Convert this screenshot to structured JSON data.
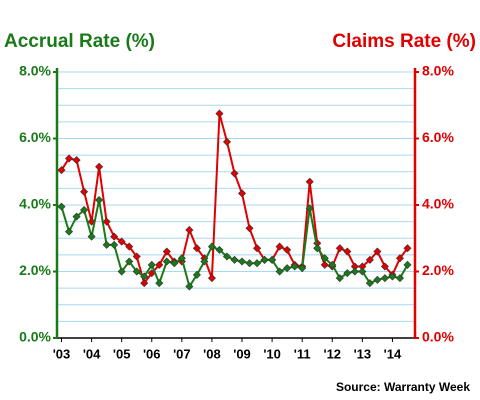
{
  "chart_data": {
    "type": "line",
    "title_left": "Accrual Rate (%)",
    "title_right": "Claims Rate (%)",
    "source": "Source: Warranty Week",
    "x": [
      2003,
      2003.25,
      2003.5,
      2003.75,
      2004,
      2004.25,
      2004.5,
      2004.75,
      2005,
      2005.25,
      2005.5,
      2005.75,
      2006,
      2006.25,
      2006.5,
      2006.75,
      2007,
      2007.25,
      2007.5,
      2007.75,
      2008,
      2008.25,
      2008.5,
      2008.75,
      2009,
      2009.25,
      2009.5,
      2009.75,
      2010,
      2010.25,
      2010.5,
      2010.75,
      2011,
      2011.25,
      2011.5,
      2011.75,
      2012,
      2012.25,
      2012.5,
      2012.75,
      2013,
      2013.25,
      2013.5,
      2013.75,
      2014,
      2014.25,
      2014.5
    ],
    "series": [
      {
        "name": "Claims Rate (%)",
        "color": "#e00000",
        "axis": "y2",
        "values": [
          5.05,
          5.4,
          5.35,
          4.4,
          3.5,
          5.15,
          3.5,
          3.05,
          2.9,
          2.75,
          2.45,
          1.65,
          1.95,
          2.2,
          2.6,
          2.3,
          2.3,
          3.25,
          2.7,
          2.4,
          1.8,
          6.75,
          5.9,
          4.95,
          4.35,
          3.3,
          2.7,
          2.35,
          2.35,
          2.75,
          2.65,
          2.2,
          2.15,
          4.7,
          2.85,
          2.2,
          2.15,
          2.7,
          2.6,
          2.15,
          2.15,
          2.35,
          2.6,
          2.15,
          1.9,
          2.4,
          2.7
        ]
      },
      {
        "name": "Accrual Rate (%)",
        "color": "#1a7a1a",
        "axis": "y",
        "values": [
          3.95,
          3.2,
          3.65,
          3.85,
          3.05,
          4.15,
          2.8,
          2.8,
          2.0,
          2.3,
          2.0,
          1.85,
          2.2,
          1.65,
          2.3,
          2.25,
          2.4,
          1.55,
          1.9,
          2.3,
          2.75,
          2.65,
          2.45,
          2.35,
          2.3,
          2.25,
          2.25,
          2.35,
          2.35,
          2.0,
          2.1,
          2.15,
          2.1,
          3.9,
          2.7,
          2.4,
          2.2,
          1.8,
          1.95,
          2.0,
          2.0,
          1.65,
          1.75,
          1.8,
          1.85,
          1.8,
          2.2
        ]
      }
    ],
    "xlim": [
      2002.85,
      2014.75
    ],
    "xticks": [
      {
        "value": 2003,
        "label": "'03"
      },
      {
        "value": 2004,
        "label": "'04"
      },
      {
        "value": 2005,
        "label": "'05"
      },
      {
        "value": 2006,
        "label": "'06"
      },
      {
        "value": 2007,
        "label": "'07"
      },
      {
        "value": 2008,
        "label": "'08"
      },
      {
        "value": 2009,
        "label": "'09"
      },
      {
        "value": 2010,
        "label": "'10"
      },
      {
        "value": 2011,
        "label": "'11"
      },
      {
        "value": 2012,
        "label": "'12"
      },
      {
        "value": 2013,
        "label": "'13"
      },
      {
        "value": 2014,
        "label": "'14"
      }
    ],
    "ylim": [
      0,
      8
    ],
    "yticks": [
      {
        "value": 0,
        "label": "0.0%"
      },
      {
        "value": 2,
        "label": "2.0%"
      },
      {
        "value": 4,
        "label": "4.0%"
      },
      {
        "value": 6,
        "label": "6.0%"
      },
      {
        "value": 8,
        "label": "8.0%"
      }
    ],
    "y2lim": [
      0,
      8
    ],
    "y2ticks": [
      {
        "value": 0,
        "label": "0.0%"
      },
      {
        "value": 2,
        "label": "2.0%"
      },
      {
        "value": 4,
        "label": "4.0%"
      },
      {
        "value": 6,
        "label": "6.0%"
      },
      {
        "value": 8,
        "label": "8.0%"
      }
    ],
    "grid_lines": [
      0.5,
      1,
      1.5,
      2,
      2.5,
      3,
      3.5,
      4,
      4.5,
      5,
      5.5,
      6,
      6.5,
      7,
      7.5,
      8
    ],
    "left_axis_color": "#1a7a1a",
    "right_axis_color": "#e00000"
  }
}
